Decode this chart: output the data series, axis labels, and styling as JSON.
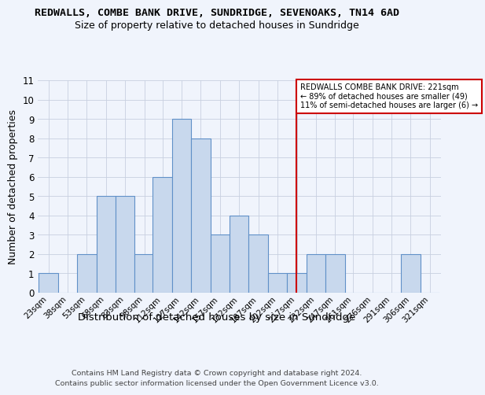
{
  "title": "REDWALLS, COMBE BANK DRIVE, SUNDRIDGE, SEVENOAKS, TN14 6AD",
  "subtitle": "Size of property relative to detached houses in Sundridge",
  "xlabel": "Distribution of detached houses by size in Sundridge",
  "ylabel": "Number of detached properties",
  "bins": [
    "23sqm",
    "38sqm",
    "53sqm",
    "68sqm",
    "83sqm",
    "98sqm",
    "112sqm",
    "127sqm",
    "142sqm",
    "157sqm",
    "172sqm",
    "187sqm",
    "202sqm",
    "217sqm",
    "232sqm",
    "247sqm",
    "261sqm",
    "276sqm",
    "291sqm",
    "306sqm",
    "321sqm"
  ],
  "bin_left_edges": [
    23,
    38,
    53,
    68,
    83,
    98,
    112,
    127,
    142,
    157,
    172,
    187,
    202,
    217,
    232,
    247,
    261,
    276,
    291,
    306,
    321
  ],
  "bin_width": 15,
  "counts": [
    1,
    0,
    2,
    5,
    5,
    2,
    6,
    9,
    8,
    3,
    4,
    3,
    1,
    1,
    2,
    2,
    0,
    0,
    0,
    2,
    0
  ],
  "bar_facecolor": "#c8d8ed",
  "bar_edgecolor": "#6090c8",
  "grid_color": "#c8d0e0",
  "bg_color": "#f0f4fc",
  "property_line_x": 224,
  "vline_color": "#cc0000",
  "annot_line0": "REDWALLS COMBE BANK DRIVE: 221sqm",
  "annot_line1": "← 89% of detached houses are smaller (49)",
  "annot_line2": "11% of semi-detached houses are larger (6) →",
  "annot_box_fc": "#ffffff",
  "annot_box_ec": "#cc0000",
  "ylim_max": 11,
  "yticks": [
    0,
    1,
    2,
    3,
    4,
    5,
    6,
    7,
    8,
    9,
    10,
    11
  ],
  "footnote_line1": "Contains HM Land Registry data © Crown copyright and database right 2024.",
  "footnote_line2": "Contains public sector information licensed under the Open Government Licence v3.0."
}
